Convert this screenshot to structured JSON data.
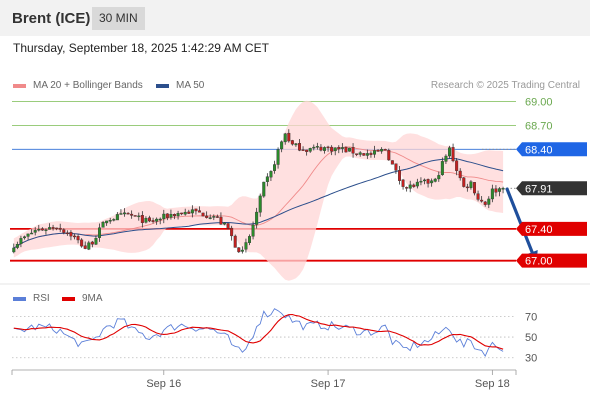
{
  "header": {
    "instrument": "Brent (ICE)",
    "timeframe": "30 MIN"
  },
  "datetime": "Thursday, September 18, 2025 1:42:29 AM CET",
  "legend": {
    "bollinger": {
      "label": "MA 20 + Bollinger Bands",
      "color": "#f08a8a"
    },
    "ma50": {
      "label": "MA 50",
      "color": "#2c4f8c"
    }
  },
  "credit": "Research © 2025 Trading Central",
  "rsi_legend": {
    "rsi": {
      "label": "RSI",
      "color": "#5b7fd8"
    },
    "ma9": {
      "label": "9MA",
      "color": "#e00000"
    }
  },
  "colors": {
    "bullish": "#2b8a2b",
    "bearish": "#c22020",
    "band": "#ffd6d6",
    "forecast_arrow": "#1f4f9c"
  },
  "chart_data": {
    "type": "candlestick",
    "y_range": [
      66.82,
      69.12
    ],
    "x_tick_labels": [
      {
        "label": "Sep 16",
        "index": 42
      },
      {
        "label": "Sep 17",
        "index": 88
      },
      {
        "label": "Sep 18",
        "index": 134
      }
    ],
    "levels": [
      {
        "value": 69.0,
        "label": "69.00",
        "style": "resistance"
      },
      {
        "value": 68.7,
        "label": "68.70",
        "style": "resistance"
      },
      {
        "value": 68.4,
        "label": "68.40",
        "style": "pivot"
      },
      {
        "value": 67.91,
        "label": "67.91",
        "style": "last"
      },
      {
        "value": 67.4,
        "label": "67.40",
        "style": "support"
      },
      {
        "value": 67.0,
        "label": "67.00",
        "style": "support"
      }
    ],
    "forecast": {
      "from_index": 137,
      "from_value": 67.9,
      "to_index": 146,
      "to_value": 67.0
    },
    "anchors": [
      [
        0,
        67.2
      ],
      [
        6,
        67.38
      ],
      [
        12,
        67.43
      ],
      [
        16,
        67.33
      ],
      [
        20,
        67.16
      ],
      [
        22,
        67.24
      ],
      [
        26,
        67.52
      ],
      [
        32,
        67.58
      ],
      [
        38,
        67.48
      ],
      [
        44,
        67.58
      ],
      [
        50,
        67.62
      ],
      [
        56,
        67.56
      ],
      [
        60,
        67.4
      ],
      [
        62,
        67.2
      ],
      [
        64,
        67.1
      ],
      [
        66,
        67.3
      ],
      [
        68,
        67.6
      ],
      [
        70,
        67.95
      ],
      [
        72,
        68.1
      ],
      [
        74,
        68.38
      ],
      [
        76,
        68.6
      ],
      [
        78,
        68.45
      ],
      [
        82,
        68.4
      ],
      [
        86,
        68.42
      ],
      [
        92,
        68.4
      ],
      [
        96,
        68.36
      ],
      [
        100,
        68.33
      ],
      [
        104,
        68.4
      ],
      [
        106,
        68.2
      ],
      [
        108,
        68.02
      ],
      [
        110,
        67.92
      ],
      [
        114,
        67.97
      ],
      [
        118,
        68.0
      ],
      [
        120,
        68.22
      ],
      [
        122,
        68.4
      ],
      [
        124,
        68.15
      ],
      [
        126,
        67.92
      ],
      [
        128,
        67.98
      ],
      [
        130,
        67.78
      ],
      [
        132,
        67.72
      ],
      [
        134,
        67.88
      ],
      [
        137,
        67.91
      ]
    ],
    "rsi": {
      "ticks": [
        70,
        50,
        30
      ],
      "y_range": [
        22,
        82
      ],
      "anchors": [
        [
          0,
          55
        ],
        [
          6,
          60
        ],
        [
          12,
          58
        ],
        [
          16,
          48
        ],
        [
          20,
          42
        ],
        [
          22,
          46
        ],
        [
          26,
          60
        ],
        [
          30,
          66
        ],
        [
          34,
          55
        ],
        [
          38,
          50
        ],
        [
          42,
          56
        ],
        [
          46,
          62
        ],
        [
          50,
          60
        ],
        [
          56,
          57
        ],
        [
          60,
          48
        ],
        [
          62,
          38
        ],
        [
          64,
          34
        ],
        [
          66,
          45
        ],
        [
          68,
          62
        ],
        [
          70,
          72
        ],
        [
          72,
          74
        ],
        [
          74,
          78
        ],
        [
          76,
          72
        ],
        [
          78,
          66
        ],
        [
          82,
          60
        ],
        [
          86,
          62
        ],
        [
          90,
          60
        ],
        [
          94,
          58
        ],
        [
          98,
          55
        ],
        [
          102,
          56
        ],
        [
          104,
          60
        ],
        [
          106,
          46
        ],
        [
          108,
          40
        ],
        [
          110,
          38
        ],
        [
          112,
          42
        ],
        [
          116,
          46
        ],
        [
          120,
          56
        ],
        [
          122,
          60
        ],
        [
          124,
          48
        ],
        [
          126,
          42
        ],
        [
          128,
          46
        ],
        [
          130,
          38
        ],
        [
          132,
          36
        ],
        [
          134,
          42
        ],
        [
          137,
          40
        ]
      ]
    }
  }
}
